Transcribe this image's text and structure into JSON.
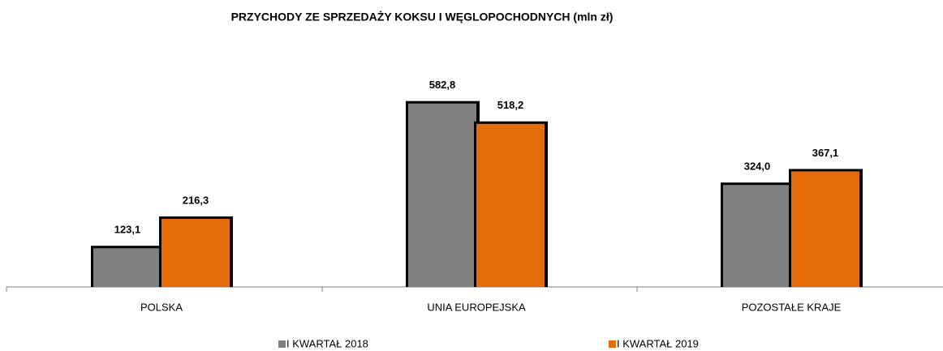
{
  "chart_data": {
    "type": "bar",
    "title": "PRZYCHODY  ZE SPRZEDAŻY KOKSU I WĘGLOPOCHODNYCH (mln zł)",
    "categories": [
      "POLSKA",
      "UNIA EUROPEJSKA",
      "POZOSTAŁE KRAJE"
    ],
    "series": [
      {
        "name": "I KWARTAŁ 2018",
        "color": "#808080",
        "values": [
          123.1,
          582.8,
          324.0
        ],
        "value_labels": [
          "123,1",
          "582,8",
          "324,0"
        ]
      },
      {
        "name": "I KWARTAŁ 2019",
        "color": "#e46c0a",
        "values": [
          216.3,
          518.2,
          367.1
        ],
        "value_labels": [
          "216,3",
          "518,2",
          "367,1"
        ]
      }
    ],
    "ylim": [
      0,
      600
    ],
    "legend": "bottom"
  }
}
